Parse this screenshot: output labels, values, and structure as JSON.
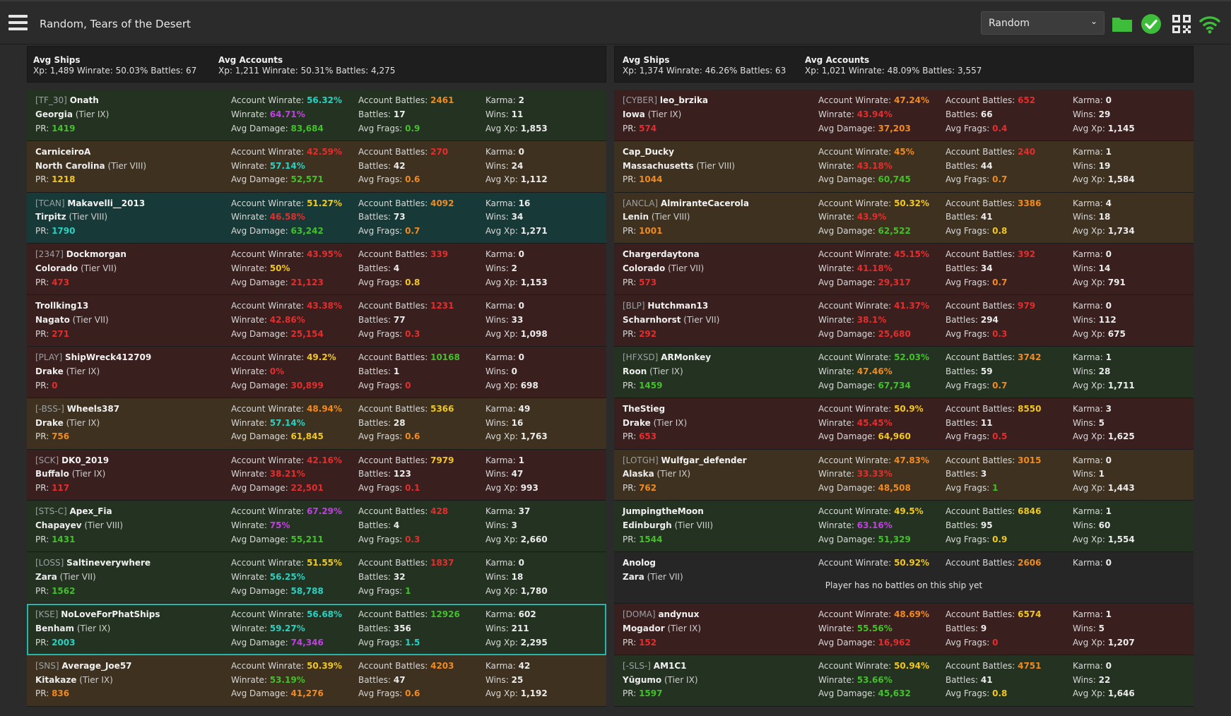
{
  "header": {
    "title": "Random, Tears of the Desert",
    "mode_select": "Random",
    "icons": [
      "menu-icon",
      "folder-icon",
      "check-circle-icon",
      "qr-code-icon",
      "wifi-icon"
    ]
  },
  "colors": {
    "white": "#ececec",
    "cyan": "#2ad1c2",
    "green": "#43c12a",
    "yellow": "#f2c81e",
    "orange": "#f28a1e",
    "red": "#e52d2d",
    "purple": "#c23fe5"
  },
  "teams": [
    {
      "avg_ships": {
        "label": "Avg Ships",
        "values": "Xp: 1,489   Winrate: 50.03%   Battles: 67"
      },
      "avg_accounts": {
        "label": "Avg Accounts",
        "values": "Xp: 1,211   Winrate: 50.31%   Battles: 4,275"
      },
      "players": [
        {
          "bg": "green",
          "clan": "[TF_30]",
          "name": "Onath",
          "ship": "Georgia",
          "tier": "(Tier IX)",
          "pr": "1419",
          "pr_c": "green",
          "acc_wr": "56.32%",
          "acc_wr_c": "cyan",
          "wr": "64.71%",
          "wr_c": "purple",
          "dmg": "83,684",
          "dmg_c": "green",
          "acc_battles": "2461",
          "acc_battles_c": "orange",
          "battles": "17",
          "frags": "0.9",
          "frags_c": "green",
          "karma": "2",
          "wins": "11",
          "avg_xp": "1,853"
        },
        {
          "bg": "brown",
          "clan": "",
          "name": "CarniceiroA",
          "ship": "North Carolina",
          "tier": "(Tier VIII)",
          "pr": "1218",
          "pr_c": "yellow",
          "acc_wr": "42.59%",
          "acc_wr_c": "red",
          "wr": "57.14%",
          "wr_c": "cyan",
          "dmg": "52,571",
          "dmg_c": "green",
          "acc_battles": "270",
          "acc_battles_c": "red",
          "battles": "42",
          "frags": "0.6",
          "frags_c": "orange",
          "karma": "0",
          "wins": "24",
          "avg_xp": "1,112"
        },
        {
          "bg": "teal",
          "clan": "[TCAN]",
          "name": "Makavelli__2013",
          "ship": "Tirpitz",
          "tier": "(Tier VIII)",
          "pr": "1790",
          "pr_c": "cyan",
          "acc_wr": "51.27%",
          "acc_wr_c": "yellow",
          "wr": "46.58%",
          "wr_c": "red",
          "dmg": "63,242",
          "dmg_c": "green",
          "acc_battles": "4092",
          "acc_battles_c": "orange",
          "battles": "73",
          "frags": "0.7",
          "frags_c": "orange",
          "karma": "16",
          "wins": "34",
          "avg_xp": "1,271"
        },
        {
          "bg": "red",
          "clan": "[2347]",
          "name": "Dockmorgan",
          "ship": "Colorado",
          "tier": "(Tier VII)",
          "pr": "473",
          "pr_c": "red",
          "acc_wr": "43.95%",
          "acc_wr_c": "red",
          "wr": "50%",
          "wr_c": "yellow",
          "dmg": "21,123",
          "dmg_c": "red",
          "acc_battles": "339",
          "acc_battles_c": "red",
          "battles": "4",
          "frags": "0.8",
          "frags_c": "yellow",
          "karma": "0",
          "wins": "2",
          "avg_xp": "1,153"
        },
        {
          "bg": "red",
          "clan": "",
          "name": "Trollking13",
          "ship": "Nagato",
          "tier": "(Tier VII)",
          "pr": "271",
          "pr_c": "red",
          "acc_wr": "43.38%",
          "acc_wr_c": "red",
          "wr": "42.86%",
          "wr_c": "red",
          "dmg": "25,154",
          "dmg_c": "red",
          "acc_battles": "1231",
          "acc_battles_c": "red",
          "battles": "77",
          "frags": "0.3",
          "frags_c": "red",
          "karma": "0",
          "wins": "33",
          "avg_xp": "1,098"
        },
        {
          "bg": "red",
          "clan": "[PLAY]",
          "name": "ShipWreck412709",
          "ship": "Drake",
          "tier": "(Tier IX)",
          "pr": "0",
          "pr_c": "red",
          "acc_wr": "49.2%",
          "acc_wr_c": "yellow",
          "wr": "0%",
          "wr_c": "red",
          "dmg": "30,899",
          "dmg_c": "red",
          "acc_battles": "10168",
          "acc_battles_c": "green",
          "battles": "1",
          "frags": "0",
          "frags_c": "red",
          "karma": "0",
          "wins": "0",
          "avg_xp": "698"
        },
        {
          "bg": "brown",
          "clan": "[-BSS-]",
          "name": "Wheels387",
          "ship": "Drake",
          "tier": "(Tier IX)",
          "pr": "756",
          "pr_c": "orange",
          "acc_wr": "48.94%",
          "acc_wr_c": "orange",
          "wr": "57.14%",
          "wr_c": "cyan",
          "dmg": "61,845",
          "dmg_c": "yellow",
          "acc_battles": "5366",
          "acc_battles_c": "yellow",
          "battles": "28",
          "frags": "0.6",
          "frags_c": "orange",
          "karma": "49",
          "wins": "16",
          "avg_xp": "1,763"
        },
        {
          "bg": "red",
          "clan": "[SCK]",
          "name": "DK0_2019",
          "ship": "Buffalo",
          "tier": "(Tier IX)",
          "pr": "117",
          "pr_c": "red",
          "acc_wr": "42.16%",
          "acc_wr_c": "red",
          "wr": "38.21%",
          "wr_c": "red",
          "dmg": "22,501",
          "dmg_c": "red",
          "acc_battles": "7979",
          "acc_battles_c": "yellow",
          "battles": "123",
          "frags": "0.1",
          "frags_c": "red",
          "karma": "1",
          "wins": "47",
          "avg_xp": "993"
        },
        {
          "bg": "green",
          "clan": "[STS-C]",
          "name": "Apex_Fia",
          "ship": "Chapayev",
          "tier": "(Tier VIII)",
          "pr": "1431",
          "pr_c": "green",
          "acc_wr": "67.29%",
          "acc_wr_c": "purple",
          "wr": "75%",
          "wr_c": "purple",
          "dmg": "55,211",
          "dmg_c": "green",
          "acc_battles": "428",
          "acc_battles_c": "red",
          "battles": "4",
          "frags": "0.3",
          "frags_c": "red",
          "karma": "37",
          "wins": "3",
          "avg_xp": "2,660"
        },
        {
          "bg": "green",
          "clan": "[LOSS]",
          "name": "Saltineverywhere",
          "ship": "Zara",
          "tier": "(Tier VII)",
          "pr": "1562",
          "pr_c": "green",
          "acc_wr": "51.55%",
          "acc_wr_c": "yellow",
          "wr": "56.25%",
          "wr_c": "cyan",
          "dmg": "58,788",
          "dmg_c": "cyan",
          "acc_battles": "1837",
          "acc_battles_c": "red",
          "battles": "32",
          "frags": "1",
          "frags_c": "green",
          "karma": "0",
          "wins": "18",
          "avg_xp": "1,780"
        },
        {
          "bg": "green",
          "hl": true,
          "clan": "[KSE]",
          "name": "NoLoveForPhatShips",
          "ship": "Benham",
          "tier": "(Tier IX)",
          "pr": "2003",
          "pr_c": "cyan",
          "acc_wr": "56.68%",
          "acc_wr_c": "cyan",
          "wr": "59.27%",
          "wr_c": "cyan",
          "dmg": "74,346",
          "dmg_c": "purple",
          "acc_battles": "12926",
          "acc_battles_c": "green",
          "battles": "356",
          "frags": "1.5",
          "frags_c": "cyan",
          "karma": "602",
          "wins": "211",
          "avg_xp": "2,295"
        },
        {
          "bg": "brown",
          "clan": "[SNS]",
          "name": "Average_Joe57",
          "ship": "Kitakaze",
          "tier": "(Tier IX)",
          "pr": "836",
          "pr_c": "orange",
          "acc_wr": "50.39%",
          "acc_wr_c": "yellow",
          "wr": "53.19%",
          "wr_c": "green",
          "dmg": "41,276",
          "dmg_c": "orange",
          "acc_battles": "4203",
          "acc_battles_c": "orange",
          "battles": "47",
          "frags": "0.6",
          "frags_c": "orange",
          "karma": "42",
          "wins": "25",
          "avg_xp": "1,192"
        }
      ]
    },
    {
      "avg_ships": {
        "label": "Avg Ships",
        "values": "Xp: 1,374   Winrate: 46.26%   Battles: 63"
      },
      "avg_accounts": {
        "label": "Avg Accounts",
        "values": "Xp: 1,021   Winrate: 48.09%   Battles: 3,557"
      },
      "players": [
        {
          "bg": "red",
          "clan": "[CYBER]",
          "name": "leo_brzika",
          "ship": "Iowa",
          "tier": "(Tier IX)",
          "pr": "574",
          "pr_c": "red",
          "acc_wr": "47.24%",
          "acc_wr_c": "orange",
          "wr": "43.94%",
          "wr_c": "red",
          "dmg": "37,203",
          "dmg_c": "orange",
          "acc_battles": "652",
          "acc_battles_c": "red",
          "battles": "66",
          "frags": "0.4",
          "frags_c": "red",
          "karma": "0",
          "wins": "29",
          "avg_xp": "1,145"
        },
        {
          "bg": "brown",
          "clan": "",
          "name": "Cap_Ducky",
          "ship": "Massachusetts",
          "tier": "(Tier VIII)",
          "pr": "1044",
          "pr_c": "orange",
          "acc_wr": "45%",
          "acc_wr_c": "orange",
          "wr": "43.18%",
          "wr_c": "red",
          "dmg": "60,745",
          "dmg_c": "green",
          "acc_battles": "240",
          "acc_battles_c": "red",
          "battles": "44",
          "frags": "0.7",
          "frags_c": "orange",
          "karma": "1",
          "wins": "19",
          "avg_xp": "1,584"
        },
        {
          "bg": "brown",
          "clan": "[ANCLA]",
          "name": "AlmiranteCacerola",
          "ship": "Lenin",
          "tier": "(Tier VIII)",
          "pr": "1001",
          "pr_c": "orange",
          "acc_wr": "50.32%",
          "acc_wr_c": "yellow",
          "wr": "43.9%",
          "wr_c": "red",
          "dmg": "62,522",
          "dmg_c": "green",
          "acc_battles": "3386",
          "acc_battles_c": "orange",
          "battles": "41",
          "frags": "0.8",
          "frags_c": "yellow",
          "karma": "4",
          "wins": "18",
          "avg_xp": "1,734"
        },
        {
          "bg": "red",
          "clan": "",
          "name": "Chargerdaytona",
          "ship": "Colorado",
          "tier": "(Tier VII)",
          "pr": "573",
          "pr_c": "red",
          "acc_wr": "45.15%",
          "acc_wr_c": "red",
          "wr": "41.18%",
          "wr_c": "red",
          "dmg": "29,317",
          "dmg_c": "red",
          "acc_battles": "392",
          "acc_battles_c": "red",
          "battles": "34",
          "frags": "0.7",
          "frags_c": "orange",
          "karma": "0",
          "wins": "14",
          "avg_xp": "791"
        },
        {
          "bg": "red",
          "clan": "[BLP]",
          "name": "Hutchman13",
          "ship": "Scharnhorst",
          "tier": "(Tier VII)",
          "pr": "292",
          "pr_c": "red",
          "acc_wr": "41.37%",
          "acc_wr_c": "red",
          "wr": "38.1%",
          "wr_c": "red",
          "dmg": "25,680",
          "dmg_c": "red",
          "acc_battles": "979",
          "acc_battles_c": "red",
          "battles": "294",
          "frags": "0.3",
          "frags_c": "red",
          "karma": "0",
          "wins": "112",
          "avg_xp": "675"
        },
        {
          "bg": "green",
          "clan": "[HFXSD]",
          "name": "ARMonkey",
          "ship": "Roon",
          "tier": "(Tier IX)",
          "pr": "1459",
          "pr_c": "green",
          "acc_wr": "52.03%",
          "acc_wr_c": "green",
          "wr": "47.46%",
          "wr_c": "orange",
          "dmg": "67,734",
          "dmg_c": "green",
          "acc_battles": "3742",
          "acc_battles_c": "orange",
          "battles": "59",
          "frags": "0.7",
          "frags_c": "orange",
          "karma": "1",
          "wins": "28",
          "avg_xp": "1,711"
        },
        {
          "bg": "red",
          "clan": "",
          "name": "TheStieg",
          "ship": "Drake",
          "tier": "(Tier IX)",
          "pr": "653",
          "pr_c": "red",
          "acc_wr": "50.9%",
          "acc_wr_c": "yellow",
          "wr": "45.45%",
          "wr_c": "red",
          "dmg": "64,960",
          "dmg_c": "yellow",
          "acc_battles": "8550",
          "acc_battles_c": "yellow",
          "battles": "11",
          "frags": "0.5",
          "frags_c": "red",
          "karma": "3",
          "wins": "5",
          "avg_xp": "1,625"
        },
        {
          "bg": "brown",
          "clan": "[LOTGH]",
          "name": "Wulfgar_defender",
          "ship": "Alaska",
          "tier": "(Tier IX)",
          "pr": "762",
          "pr_c": "orange",
          "acc_wr": "47.83%",
          "acc_wr_c": "orange",
          "wr": "33.33%",
          "wr_c": "red",
          "dmg": "48,508",
          "dmg_c": "orange",
          "acc_battles": "3015",
          "acc_battles_c": "orange",
          "battles": "3",
          "frags": "1",
          "frags_c": "green",
          "karma": "0",
          "wins": "1",
          "avg_xp": "1,443"
        },
        {
          "bg": "green",
          "clan": "",
          "name": "JumpingtheMoon",
          "ship": "Edinburgh",
          "tier": "(Tier VIII)",
          "pr": "1544",
          "pr_c": "green",
          "acc_wr": "49.5%",
          "acc_wr_c": "yellow",
          "wr": "63.16%",
          "wr_c": "purple",
          "dmg": "51,329",
          "dmg_c": "green",
          "acc_battles": "6846",
          "acc_battles_c": "yellow",
          "battles": "95",
          "frags": "0.9",
          "frags_c": "yellow",
          "karma": "1",
          "wins": "60",
          "avg_xp": "1,554"
        },
        {
          "bg": "grey",
          "nobattles": true,
          "clan": "",
          "name": "Anolog",
          "ship": "Zara",
          "tier": "(Tier VII)",
          "acc_wr": "50.92%",
          "acc_wr_c": "yellow",
          "acc_battles": "2606",
          "acc_battles_c": "orange",
          "karma": "0",
          "message": "Player has no battles on this ship yet"
        },
        {
          "bg": "red",
          "clan": "[DOMA]",
          "name": "andynux",
          "ship": "Mogador",
          "tier": "(Tier IX)",
          "pr": "152",
          "pr_c": "red",
          "acc_wr": "48.69%",
          "acc_wr_c": "orange",
          "wr": "55.56%",
          "wr_c": "green",
          "dmg": "16,962",
          "dmg_c": "red",
          "acc_battles": "6574",
          "acc_battles_c": "yellow",
          "battles": "9",
          "frags": "0",
          "frags_c": "red",
          "karma": "1",
          "wins": "5",
          "avg_xp": "1,207"
        },
        {
          "bg": "green",
          "clan": "[-SLS-]",
          "name": "AM1C1",
          "ship": "Yūgumo",
          "tier": "(Tier IX)",
          "pr": "1597",
          "pr_c": "green",
          "acc_wr": "50.94%",
          "acc_wr_c": "yellow",
          "wr": "53.66%",
          "wr_c": "green",
          "dmg": "45,632",
          "dmg_c": "green",
          "acc_battles": "4751",
          "acc_battles_c": "orange",
          "battles": "41",
          "frags": "0.8",
          "frags_c": "yellow",
          "karma": "0",
          "wins": "22",
          "avg_xp": "1,646"
        }
      ]
    }
  ],
  "labels": {
    "pr": "PR:",
    "acc_wr": "Account Winrate:",
    "wr": "Winrate:",
    "dmg": "Avg Damage:",
    "acc_battles": "Account Battles:",
    "battles": "Battles:",
    "frags": "Avg Frags:",
    "karma": "Karma:",
    "wins": "Wins:",
    "avg_xp": "Avg Xp:"
  }
}
